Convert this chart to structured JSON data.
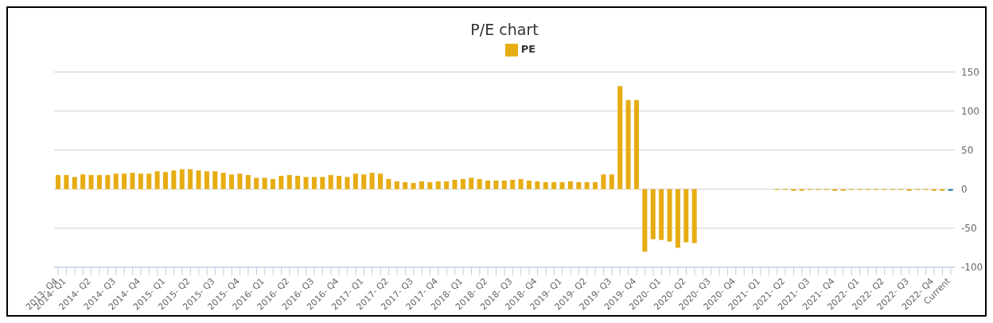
{
  "chart_data": {
    "type": "bar",
    "title": "P/E chart",
    "categories": [
      "2013- Q4",
      "2014- Q1",
      null,
      null,
      "2014- Q2",
      null,
      null,
      "2014- Q3",
      null,
      null,
      "2014- Q4",
      null,
      null,
      "2015- Q1",
      null,
      null,
      "2015- Q2",
      null,
      null,
      "2015- Q3",
      null,
      null,
      "2015- Q4",
      null,
      null,
      "2016- Q1",
      null,
      null,
      "2016- Q2",
      null,
      null,
      "2016- Q3",
      null,
      null,
      "2016- Q4",
      null,
      null,
      "2017- Q1",
      null,
      null,
      "2017- Q2",
      null,
      null,
      "2017- Q3",
      null,
      null,
      "2017- Q4",
      null,
      null,
      "2018- Q1",
      null,
      null,
      "2018- Q2",
      null,
      null,
      "2018- Q3",
      null,
      null,
      "2018- Q4",
      null,
      null,
      "2019- Q1",
      null,
      null,
      "2019- Q2",
      null,
      null,
      "2019- Q3",
      null,
      null,
      "2019- Q4",
      null,
      null,
      "2020- Q1",
      null,
      null,
      "2020- Q2",
      null,
      null,
      "2020- Q3",
      null,
      null,
      "2020- Q4",
      null,
      null,
      "2021- Q1",
      null,
      null,
      "2021- Q2",
      null,
      null,
      "2021- Q3",
      null,
      null,
      "2021- Q4",
      null,
      null,
      "2022- Q1",
      null,
      null,
      "2022- Q2",
      null,
      null,
      "2022- Q3",
      null,
      null,
      "2022- Q4",
      null,
      "Current"
    ],
    "series": [
      {
        "name": "PE",
        "color": "#e6ac12",
        "values": [
          18,
          18,
          15.5,
          19,
          18,
          18,
          18,
          20,
          20,
          21,
          20,
          20,
          23,
          22,
          24,
          25.5,
          25.5,
          24,
          23,
          23,
          21,
          19,
          20,
          18,
          14.5,
          14.5,
          13,
          17,
          18,
          17,
          15.5,
          15.5,
          15.5,
          18,
          17,
          15.5,
          20,
          19,
          21,
          20,
          13,
          10,
          9,
          8,
          10,
          9,
          10,
          10,
          12,
          13,
          14.5,
          13,
          11,
          11,
          11,
          12,
          13,
          11,
          10,
          9,
          9,
          9,
          10,
          9,
          9,
          9,
          19,
          19,
          132,
          114,
          114,
          -80,
          -64,
          -65,
          -67,
          -75,
          -68,
          -69,
          null,
          null,
          null,
          null,
          null,
          null,
          null,
          null,
          null,
          -1,
          -1,
          -2,
          -2,
          -1,
          -1,
          -1,
          -2,
          -2,
          -1,
          -1,
          -1,
          -1,
          -1,
          -1,
          -1,
          -2,
          -1,
          -1,
          -2,
          -2,
          -2
        ],
        "colors": [
          "#e6ac12",
          "#e6ac12",
          "#e6ac12",
          "#e6ac12",
          "#e6ac12",
          "#e6ac12",
          "#e6ac12",
          "#e6ac12",
          "#e6ac12",
          "#e6ac12",
          "#e6ac12",
          "#e6ac12",
          "#e6ac12",
          "#e6ac12",
          "#e6ac12",
          "#e6ac12",
          "#e6ac12",
          "#e6ac12",
          "#e6ac12",
          "#e6ac12",
          "#e6ac12",
          "#e6ac12",
          "#e6ac12",
          "#e6ac12",
          "#e6ac12",
          "#e6ac12",
          "#e6ac12",
          "#e6ac12",
          "#e6ac12",
          "#e6ac12",
          "#e6ac12",
          "#e6ac12",
          "#e6ac12",
          "#e6ac12",
          "#e6ac12",
          "#e6ac12",
          "#e6ac12",
          "#e6ac12",
          "#e6ac12",
          "#e6ac12",
          "#e6ac12",
          "#e6ac12",
          "#e6ac12",
          "#e6ac12",
          "#e6ac12",
          "#e6ac12",
          "#e6ac12",
          "#e6ac12",
          "#e6ac12",
          "#e6ac12",
          "#e6ac12",
          "#e6ac12",
          "#e6ac12",
          "#e6ac12",
          "#e6ac12",
          "#e6ac12",
          "#e6ac12",
          "#e6ac12",
          "#e6ac12",
          "#e6ac12",
          "#e6ac12",
          "#e6ac12",
          "#e6ac12",
          "#e6ac12",
          "#e6ac12",
          "#e6ac12",
          "#e6ac12",
          "#e6ac12",
          "#e6ac12",
          "#e6ac12",
          "#e6ac12",
          "#e6ac12",
          "#e6ac12",
          "#e6ac12",
          "#e6ac12",
          "#e6ac12",
          "#e6ac12",
          "#e6ac12",
          "#e6ac12",
          "#e6ac12",
          "#e6ac12",
          "#e6ac12",
          "#e6ac12",
          "#e6ac12",
          "#e6ac12",
          "#e6ac12",
          "#e6ac12",
          "#e6ac12",
          "#e6ac12",
          "#e6ac12",
          "#e6ac12",
          "#e6ac12",
          "#e6ac12",
          "#e6ac12",
          "#e6ac12",
          "#e6ac12",
          "#e6ac12",
          "#e6ac12",
          "#e6ac12",
          "#e6ac12",
          "#e6ac12",
          "#e6ac12",
          "#e6ac12",
          "#e6ac12",
          "#e6ac12",
          "#e6ac12",
          "#e6ac12",
          "#e6ac12",
          "#1f78b4"
        ]
      }
    ],
    "ylim": [
      -100,
      150
    ],
    "yticks": [
      -100,
      -50,
      0,
      50,
      100,
      150
    ],
    "grid": "y",
    "legend": "top"
  }
}
